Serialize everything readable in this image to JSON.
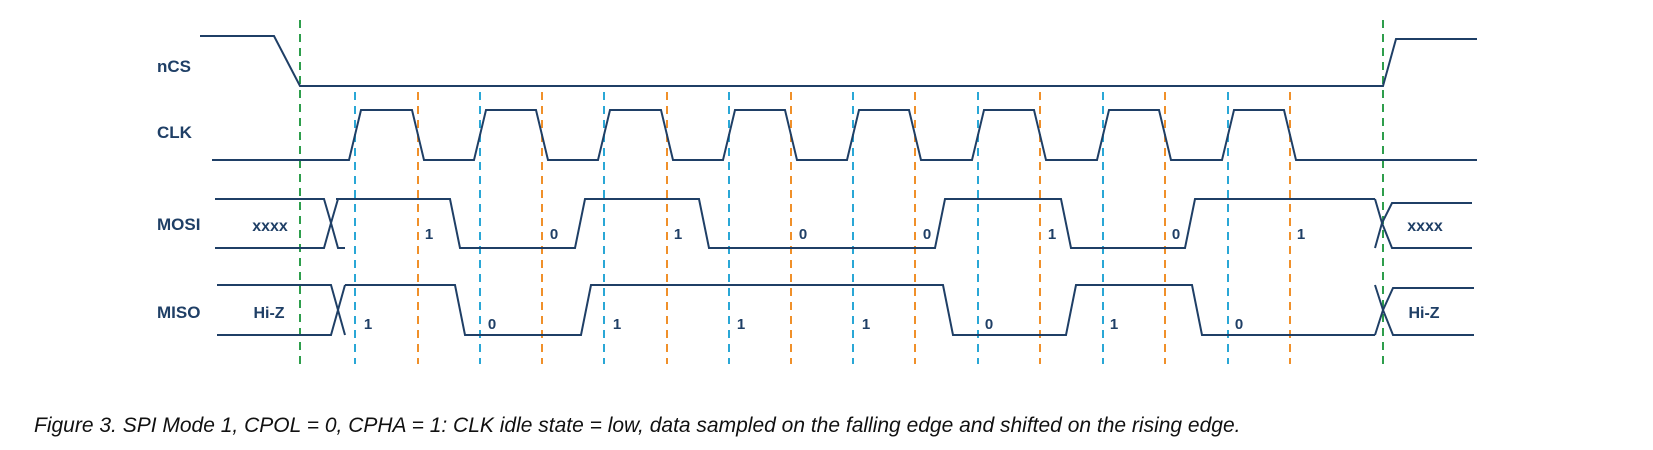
{
  "colors": {
    "signal": "#1f3f66",
    "chip_select_marker": "#2e9e4c",
    "sample_edge_marker": "#2aa7d6",
    "shift_edge_marker": "#f0902a"
  },
  "signals": {
    "ncs": {
      "name": "nCS"
    },
    "clk": {
      "name": "CLK"
    },
    "mosi": {
      "name": "MOSI",
      "idle_label_before": "xxxx",
      "idle_label_after": "xxxx",
      "bits": [
        "1",
        "0",
        "1",
        "0",
        "0",
        "1",
        "0",
        "1"
      ]
    },
    "miso": {
      "name": "MISO",
      "idle_label_before": "Hi-Z",
      "idle_label_after": "Hi-Z",
      "bits": [
        "1",
        "0",
        "1",
        "1",
        "1",
        "0",
        "1",
        "0"
      ]
    }
  },
  "caption": "Figure 3. SPI Mode 1, CPOL = 0, CPHA = 1: CLK idle state = low, data sampled on the falling edge and shifted on the rising edge."
}
